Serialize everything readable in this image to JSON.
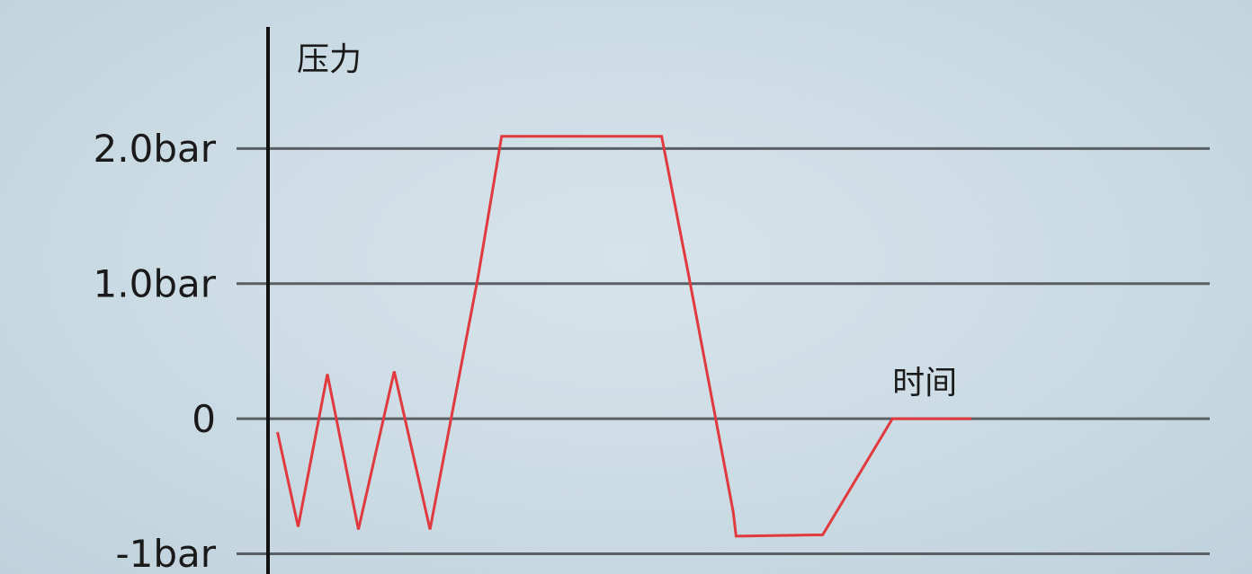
{
  "chart_data": {
    "type": "line",
    "ylabel": "压力",
    "xlabel": "时间",
    "y_ticks": [
      {
        "value": 2,
        "label": "2.0bar"
      },
      {
        "value": 1,
        "label": "1.0bar"
      },
      {
        "value": 0,
        "label": "0"
      },
      {
        "value": -1,
        "label": "-1bar"
      }
    ],
    "ylim": [
      -1.15,
      2.9
    ],
    "xlim": [
      0,
      100
    ],
    "grid": true,
    "legend": "none",
    "series": [
      {
        "color": "#e0393e",
        "points": [
          [
            1,
            -0.1
          ],
          [
            3.2,
            -0.8
          ],
          [
            6.3,
            0.33
          ],
          [
            9.6,
            -0.82
          ],
          [
            13.4,
            0.35
          ],
          [
            17.2,
            -0.82
          ],
          [
            22.3,
            1.05
          ],
          [
            24.8,
            2.09
          ],
          [
            41.8,
            2.09
          ],
          [
            44.7,
            1.05
          ],
          [
            49.4,
            -0.69
          ],
          [
            49.7,
            -0.87
          ],
          [
            58.9,
            -0.86
          ],
          [
            66.3,
            0
          ],
          [
            74.7,
            0
          ]
        ]
      }
    ]
  }
}
